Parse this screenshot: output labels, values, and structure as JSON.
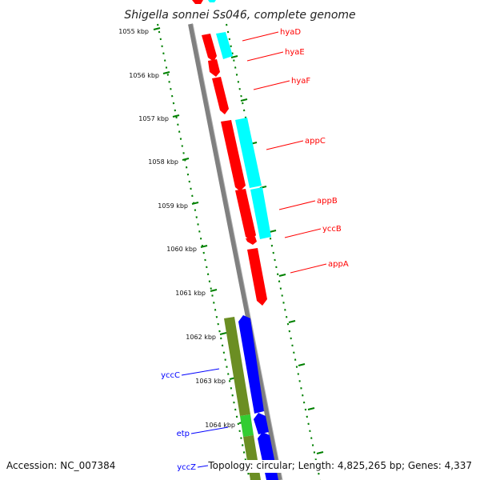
{
  "title": "Shigella sonnei Ss046, complete genome",
  "accession": "Accession: NC_007384",
  "summary": "Topology: circular; Length: 4,825,265 bp; Genes: 4,337",
  "colors": {
    "strand_forward": "#ff0000",
    "strand_reverse_blue": "#0000ff",
    "cds_feature": "#00ffff",
    "olive_feature": "#6b8e23",
    "green_feature": "#32cd32",
    "backbone": "#808080",
    "ticks": "#008000"
  },
  "ticks": [
    "1055 kbp",
    "1056 kbp",
    "1057 kbp",
    "1058 kbp",
    "1059 kbp",
    "1060 kbp",
    "1061 kbp",
    "1062 kbp",
    "1063 kbp",
    "1064 kbp"
  ],
  "genes": [
    {
      "name": "hyaD",
      "color": "red"
    },
    {
      "name": "hyaE",
      "color": "red"
    },
    {
      "name": "hyaF",
      "color": "red"
    },
    {
      "name": "appC",
      "color": "red"
    },
    {
      "name": "appB",
      "color": "red"
    },
    {
      "name": "yccB",
      "color": "red"
    },
    {
      "name": "appA",
      "color": "red"
    },
    {
      "name": "yccC",
      "color": "blue"
    },
    {
      "name": "etp",
      "color": "blue"
    },
    {
      "name": "yccZ",
      "color": "blue"
    }
  ]
}
